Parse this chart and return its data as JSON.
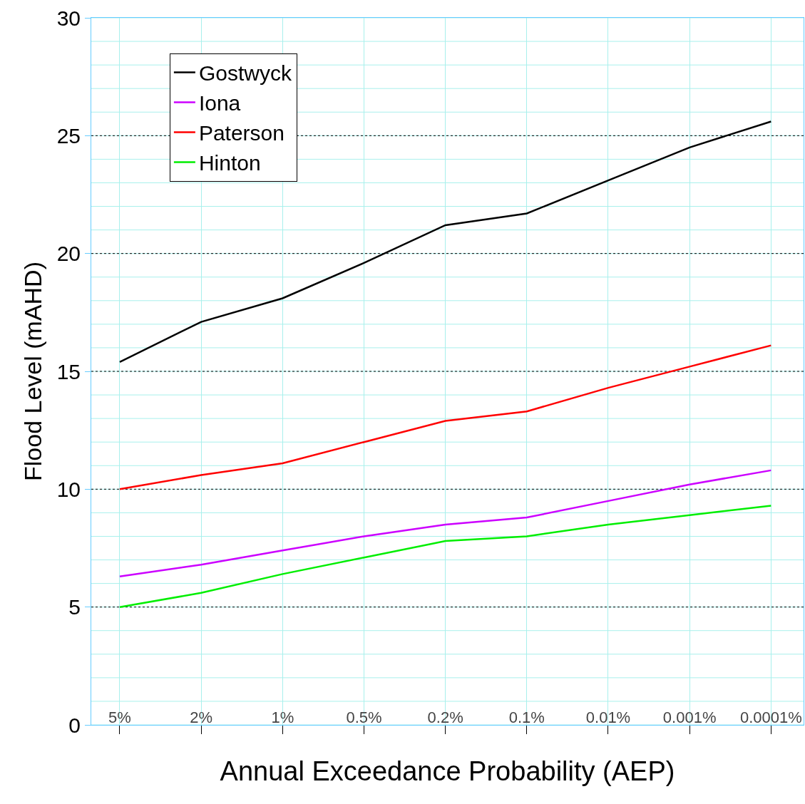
{
  "chart_data": {
    "type": "line",
    "xlabel": "Annual Exceedance Probability (AEP)",
    "ylabel": "Flood Level (mAHD)",
    "categories": [
      "5%",
      "2%",
      "1%",
      "0.5%",
      "0.2%",
      "0.1%",
      "0.01%",
      "0.001%",
      "0.0001%"
    ],
    "ylim": [
      0,
      30
    ],
    "yticks": [
      0,
      {
        "value": 1,
        "label": null
      },
      {
        "value": 2,
        "label": null
      },
      {
        "value": 3,
        "label": null
      },
      {
        "value": 4,
        "label": null
      },
      5,
      {
        "value": 6,
        "label": null
      },
      {
        "value": 7,
        "label": null
      },
      {
        "value": 8,
        "label": null
      },
      {
        "value": 9,
        "label": null
      },
      10,
      {
        "value": 11,
        "label": null
      },
      {
        "value": 12,
        "label": null
      },
      {
        "value": 13,
        "label": null
      },
      {
        "value": 14,
        "label": null
      },
      15,
      {
        "value": 16,
        "label": null
      },
      {
        "value": 17,
        "label": null
      },
      {
        "value": 18,
        "label": null
      },
      {
        "value": 19,
        "label": null
      },
      20,
      {
        "value": 21,
        "label": null
      },
      {
        "value": 22,
        "label": null
      },
      {
        "value": 23,
        "label": null
      },
      {
        "value": 24,
        "label": null
      },
      25,
      {
        "value": 26,
        "label": null
      },
      {
        "value": 27,
        "label": null
      },
      {
        "value": 28,
        "label": null
      },
      {
        "value": 29,
        "label": null
      },
      30
    ],
    "grid": true,
    "legend": "top left",
    "marker": "none",
    "line_style": "solid",
    "series": [
      {
        "name": "Gostwyck",
        "color": "#000000",
        "values": [
          15.4,
          17.1,
          18.1,
          19.6,
          21.2,
          21.7,
          23.1,
          24.5,
          25.6
        ]
      },
      {
        "name": "Iona",
        "color": "#cc00ff",
        "values": [
          6.3,
          6.8,
          7.4,
          8.0,
          8.5,
          8.8,
          9.5,
          10.2,
          10.8
        ]
      },
      {
        "name": "Paterson",
        "color": "#ff0000",
        "values": [
          10.0,
          10.6,
          11.1,
          12.0,
          12.9,
          13.3,
          14.3,
          15.2,
          16.1
        ]
      },
      {
        "name": "Hinton",
        "color": "#00ee00",
        "values": [
          5.0,
          5.6,
          6.4,
          7.1,
          7.8,
          8.0,
          8.5,
          8.9,
          9.3
        ]
      }
    ]
  }
}
